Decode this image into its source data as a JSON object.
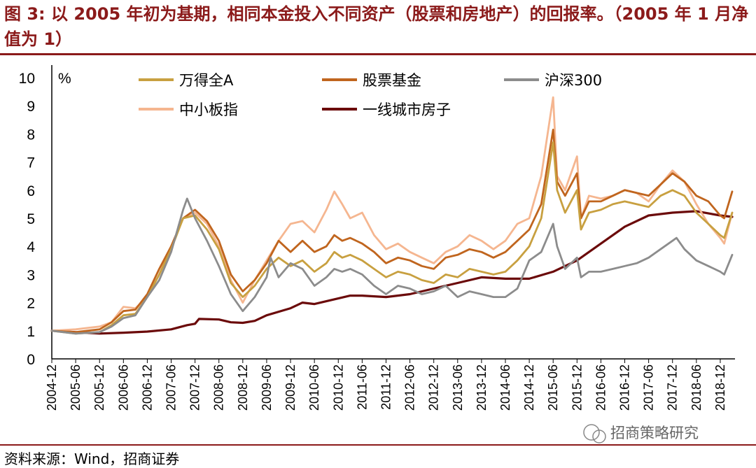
{
  "title": "图 3: 以 2005 年初为基期，相同本金投入不同资产（股票和房地产）的回报率。（2005 年 1 月净值为 1）",
  "source": "资料来源：Wind，招商证券",
  "watermark": "招商策略研究",
  "colors": {
    "accent": "#8b1a1a",
    "wande_a": "#c8a040",
    "stock_fund": "#c0651e",
    "hs300": "#8c8c8c",
    "sme": "#f5b690",
    "tier1_housing": "#6b0a0a"
  },
  "chart_data": {
    "type": "line",
    "title": "",
    "ylabel": "%",
    "ylim": [
      0,
      10
    ],
    "yticks": [
      "0",
      "1",
      "2",
      "3",
      "4",
      "5",
      "6",
      "7",
      "8",
      "9",
      "10"
    ],
    "x_start": "2004-12",
    "x_end": "2019-03",
    "x_ticks": [
      "2004-12",
      "2005-06",
      "2005-12",
      "2006-06",
      "2006-12",
      "2007-06",
      "2007-12",
      "2008-06",
      "2008-12",
      "2009-06",
      "2009-12",
      "2010-06",
      "2010-12",
      "2011-06",
      "2011-12",
      "2012-06",
      "2012-12",
      "2013-06",
      "2013-12",
      "2014-06",
      "2014-12",
      "2015-06",
      "2015-12",
      "2016-06",
      "2016-12",
      "2017-06",
      "2017-12",
      "2018-06",
      "2018-12"
    ],
    "series": [
      {
        "name": "一线城市房子",
        "color_key": "tier1_housing",
        "points": [
          [
            "2004-12",
            1.0
          ],
          [
            "2005-06",
            0.95
          ],
          [
            "2005-12",
            0.9
          ],
          [
            "2006-06",
            0.93
          ],
          [
            "2006-12",
            0.97
          ],
          [
            "2007-06",
            1.05
          ],
          [
            "2007-10",
            1.2
          ],
          [
            "2007-12",
            1.25
          ],
          [
            "2008-01",
            1.42
          ],
          [
            "2008-06",
            1.4
          ],
          [
            "2008-09",
            1.3
          ],
          [
            "2008-12",
            1.28
          ],
          [
            "2009-03",
            1.35
          ],
          [
            "2009-06",
            1.55
          ],
          [
            "2009-12",
            1.8
          ],
          [
            "2010-03",
            2.0
          ],
          [
            "2010-06",
            1.95
          ],
          [
            "2010-12",
            2.15
          ],
          [
            "2011-03",
            2.25
          ],
          [
            "2011-06",
            2.25
          ],
          [
            "2011-12",
            2.2
          ],
          [
            "2012-06",
            2.3
          ],
          [
            "2012-12",
            2.5
          ],
          [
            "2013-06",
            2.7
          ],
          [
            "2013-12",
            2.9
          ],
          [
            "2014-06",
            2.85
          ],
          [
            "2014-12",
            2.85
          ],
          [
            "2015-06",
            3.1
          ],
          [
            "2015-12",
            3.5
          ],
          [
            "2016-06",
            4.1
          ],
          [
            "2016-12",
            4.7
          ],
          [
            "2017-06",
            5.1
          ],
          [
            "2017-12",
            5.2
          ],
          [
            "2018-06",
            5.25
          ],
          [
            "2018-12",
            5.1
          ],
          [
            "2019-03",
            5.05
          ]
        ]
      },
      {
        "name": "中小板指",
        "color_key": "sme",
        "points": [
          [
            "2004-12",
            1.0
          ],
          [
            "2005-06",
            1.05
          ],
          [
            "2005-12",
            1.15
          ],
          [
            "2006-03",
            1.3
          ],
          [
            "2006-06",
            1.85
          ],
          [
            "2006-09",
            1.8
          ],
          [
            "2006-12",
            2.2
          ],
          [
            "2007-03",
            3.0
          ],
          [
            "2007-06",
            4.0
          ],
          [
            "2007-09",
            5.0
          ],
          [
            "2007-12",
            5.2
          ],
          [
            "2008-03",
            4.8
          ],
          [
            "2008-06",
            4.0
          ],
          [
            "2008-09",
            2.8
          ],
          [
            "2008-12",
            2.0
          ],
          [
            "2009-03",
            2.8
          ],
          [
            "2009-06",
            3.5
          ],
          [
            "2009-09",
            4.2
          ],
          [
            "2009-12",
            4.8
          ],
          [
            "2010-03",
            4.9
          ],
          [
            "2010-06",
            4.5
          ],
          [
            "2010-09",
            5.3
          ],
          [
            "2010-11",
            5.95
          ],
          [
            "2011-01",
            5.5
          ],
          [
            "2011-03",
            5.0
          ],
          [
            "2011-06",
            5.2
          ],
          [
            "2011-09",
            4.4
          ],
          [
            "2011-12",
            3.9
          ],
          [
            "2012-03",
            4.1
          ],
          [
            "2012-06",
            3.8
          ],
          [
            "2012-09",
            3.6
          ],
          [
            "2012-12",
            3.4
          ],
          [
            "2013-03",
            3.8
          ],
          [
            "2013-06",
            4.0
          ],
          [
            "2013-09",
            4.4
          ],
          [
            "2013-12",
            4.2
          ],
          [
            "2014-03",
            3.9
          ],
          [
            "2014-06",
            4.2
          ],
          [
            "2014-09",
            4.8
          ],
          [
            "2014-12",
            5.0
          ],
          [
            "2015-03",
            6.5
          ],
          [
            "2015-06",
            9.3
          ],
          [
            "2015-07",
            6.5
          ],
          [
            "2015-09",
            6.0
          ],
          [
            "2015-12",
            7.2
          ],
          [
            "2016-01",
            5.0
          ],
          [
            "2016-03",
            5.8
          ],
          [
            "2016-06",
            5.7
          ],
          [
            "2016-09",
            5.8
          ],
          [
            "2016-12",
            6.0
          ],
          [
            "2017-03",
            5.9
          ],
          [
            "2017-06",
            5.6
          ],
          [
            "2017-09",
            6.2
          ],
          [
            "2017-12",
            6.7
          ],
          [
            "2018-03",
            6.3
          ],
          [
            "2018-06",
            5.5
          ],
          [
            "2018-09",
            4.8
          ],
          [
            "2018-12",
            4.3
          ],
          [
            "2019-01",
            4.1
          ],
          [
            "2019-03",
            5.2
          ]
        ]
      },
      {
        "name": "股票基金",
        "color_key": "stock_fund",
        "points": [
          [
            "2004-12",
            1.0
          ],
          [
            "2005-06",
            0.95
          ],
          [
            "2005-12",
            1.05
          ],
          [
            "2006-03",
            1.3
          ],
          [
            "2006-06",
            1.7
          ],
          [
            "2006-09",
            1.75
          ],
          [
            "2006-12",
            2.3
          ],
          [
            "2007-03",
            3.2
          ],
          [
            "2007-06",
            4.0
          ],
          [
            "2007-09",
            5.0
          ],
          [
            "2007-12",
            5.3
          ],
          [
            "2008-03",
            4.9
          ],
          [
            "2008-06",
            4.2
          ],
          [
            "2008-09",
            3.0
          ],
          [
            "2008-12",
            2.4
          ],
          [
            "2009-03",
            2.8
          ],
          [
            "2009-06",
            3.4
          ],
          [
            "2009-09",
            4.2
          ],
          [
            "2009-12",
            3.8
          ],
          [
            "2010-03",
            4.2
          ],
          [
            "2010-06",
            3.8
          ],
          [
            "2010-09",
            4.0
          ],
          [
            "2010-11",
            4.4
          ],
          [
            "2011-01",
            4.2
          ],
          [
            "2011-03",
            4.3
          ],
          [
            "2011-06",
            4.1
          ],
          [
            "2011-09",
            3.8
          ],
          [
            "2011-12",
            3.4
          ],
          [
            "2012-03",
            3.6
          ],
          [
            "2012-06",
            3.5
          ],
          [
            "2012-09",
            3.3
          ],
          [
            "2012-12",
            3.2
          ],
          [
            "2013-03",
            3.6
          ],
          [
            "2013-06",
            3.7
          ],
          [
            "2013-09",
            3.9
          ],
          [
            "2013-12",
            3.8
          ],
          [
            "2014-03",
            3.6
          ],
          [
            "2014-06",
            3.8
          ],
          [
            "2014-09",
            4.2
          ],
          [
            "2014-12",
            4.6
          ],
          [
            "2015-03",
            5.5
          ],
          [
            "2015-06",
            8.15
          ],
          [
            "2015-07",
            6.3
          ],
          [
            "2015-09",
            5.8
          ],
          [
            "2015-12",
            6.6
          ],
          [
            "2016-01",
            5.0
          ],
          [
            "2016-03",
            5.6
          ],
          [
            "2016-06",
            5.6
          ],
          [
            "2016-09",
            5.8
          ],
          [
            "2016-12",
            6.0
          ],
          [
            "2017-03",
            5.9
          ],
          [
            "2017-06",
            5.8
          ],
          [
            "2017-09",
            6.2
          ],
          [
            "2017-12",
            6.6
          ],
          [
            "2018-03",
            6.3
          ],
          [
            "2018-06",
            5.8
          ],
          [
            "2018-09",
            5.6
          ],
          [
            "2018-12",
            5.1
          ],
          [
            "2019-01",
            5.0
          ],
          [
            "2019-03",
            5.95
          ]
        ]
      },
      {
        "name": "万得全A",
        "color_key": "wande_a",
        "points": [
          [
            "2004-12",
            1.0
          ],
          [
            "2005-06",
            0.9
          ],
          [
            "2005-12",
            0.95
          ],
          [
            "2006-03",
            1.2
          ],
          [
            "2006-06",
            1.55
          ],
          [
            "2006-09",
            1.6
          ],
          [
            "2006-12",
            2.2
          ],
          [
            "2007-03",
            3.0
          ],
          [
            "2007-06",
            3.9
          ],
          [
            "2007-09",
            5.0
          ],
          [
            "2007-12",
            5.1
          ],
          [
            "2008-03",
            4.6
          ],
          [
            "2008-06",
            3.9
          ],
          [
            "2008-09",
            2.7
          ],
          [
            "2008-12",
            2.2
          ],
          [
            "2009-03",
            2.6
          ],
          [
            "2009-06",
            3.2
          ],
          [
            "2009-09",
            3.6
          ],
          [
            "2009-12",
            3.3
          ],
          [
            "2010-03",
            3.5
          ],
          [
            "2010-06",
            3.1
          ],
          [
            "2010-09",
            3.4
          ],
          [
            "2010-11",
            3.8
          ],
          [
            "2011-01",
            3.6
          ],
          [
            "2011-03",
            3.7
          ],
          [
            "2011-06",
            3.5
          ],
          [
            "2011-09",
            3.2
          ],
          [
            "2011-12",
            2.9
          ],
          [
            "2012-03",
            3.1
          ],
          [
            "2012-06",
            3.0
          ],
          [
            "2012-09",
            2.8
          ],
          [
            "2012-12",
            2.7
          ],
          [
            "2013-03",
            3.0
          ],
          [
            "2013-06",
            2.9
          ],
          [
            "2013-09",
            3.2
          ],
          [
            "2013-12",
            3.1
          ],
          [
            "2014-03",
            3.0
          ],
          [
            "2014-06",
            3.1
          ],
          [
            "2014-09",
            3.5
          ],
          [
            "2014-12",
            4.0
          ],
          [
            "2015-03",
            5.0
          ],
          [
            "2015-06",
            7.7
          ],
          [
            "2015-07",
            6.0
          ],
          [
            "2015-09",
            5.2
          ],
          [
            "2015-12",
            6.0
          ],
          [
            "2016-01",
            4.6
          ],
          [
            "2016-03",
            5.2
          ],
          [
            "2016-06",
            5.3
          ],
          [
            "2016-09",
            5.5
          ],
          [
            "2016-12",
            5.6
          ],
          [
            "2017-03",
            5.5
          ],
          [
            "2017-06",
            5.4
          ],
          [
            "2017-09",
            5.8
          ],
          [
            "2017-12",
            6.0
          ],
          [
            "2018-03",
            5.8
          ],
          [
            "2018-06",
            5.2
          ],
          [
            "2018-09",
            4.8
          ],
          [
            "2018-12",
            4.4
          ],
          [
            "2019-01",
            4.3
          ],
          [
            "2019-03",
            5.2
          ]
        ]
      },
      {
        "name": "沪深300",
        "color_key": "hs300",
        "points": [
          [
            "2004-12",
            1.0
          ],
          [
            "2005-06",
            0.9
          ],
          [
            "2005-12",
            0.95
          ],
          [
            "2006-03",
            1.15
          ],
          [
            "2006-06",
            1.45
          ],
          [
            "2006-09",
            1.55
          ],
          [
            "2006-12",
            2.2
          ],
          [
            "2007-03",
            2.8
          ],
          [
            "2007-06",
            3.8
          ],
          [
            "2007-09",
            5.3
          ],
          [
            "2007-10",
            5.7
          ],
          [
            "2007-12",
            5.0
          ],
          [
            "2008-03",
            4.2
          ],
          [
            "2008-06",
            3.3
          ],
          [
            "2008-09",
            2.3
          ],
          [
            "2008-12",
            1.7
          ],
          [
            "2009-03",
            2.2
          ],
          [
            "2009-06",
            2.9
          ],
          [
            "2009-07",
            3.6
          ],
          [
            "2009-09",
            2.9
          ],
          [
            "2009-12",
            3.4
          ],
          [
            "2010-03",
            3.2
          ],
          [
            "2010-06",
            2.6
          ],
          [
            "2010-09",
            2.9
          ],
          [
            "2010-11",
            3.2
          ],
          [
            "2011-01",
            3.1
          ],
          [
            "2011-03",
            3.2
          ],
          [
            "2011-06",
            3.0
          ],
          [
            "2011-09",
            2.6
          ],
          [
            "2011-12",
            2.3
          ],
          [
            "2012-03",
            2.6
          ],
          [
            "2012-06",
            2.5
          ],
          [
            "2012-09",
            2.3
          ],
          [
            "2012-12",
            2.4
          ],
          [
            "2013-03",
            2.6
          ],
          [
            "2013-06",
            2.2
          ],
          [
            "2013-09",
            2.4
          ],
          [
            "2013-12",
            2.3
          ],
          [
            "2014-03",
            2.2
          ],
          [
            "2014-06",
            2.2
          ],
          [
            "2014-09",
            2.5
          ],
          [
            "2014-12",
            3.5
          ],
          [
            "2015-03",
            3.8
          ],
          [
            "2015-06",
            4.8
          ],
          [
            "2015-07",
            4.0
          ],
          [
            "2015-09",
            3.2
          ],
          [
            "2015-12",
            3.6
          ],
          [
            "2016-01",
            2.9
          ],
          [
            "2016-03",
            3.1
          ],
          [
            "2016-06",
            3.1
          ],
          [
            "2016-09",
            3.2
          ],
          [
            "2016-12",
            3.3
          ],
          [
            "2017-03",
            3.4
          ],
          [
            "2017-06",
            3.6
          ],
          [
            "2017-09",
            3.9
          ],
          [
            "2017-12",
            4.2
          ],
          [
            "2018-01",
            4.3
          ],
          [
            "2018-03",
            3.9
          ],
          [
            "2018-06",
            3.5
          ],
          [
            "2018-09",
            3.3
          ],
          [
            "2018-12",
            3.1
          ],
          [
            "2019-01",
            3.0
          ],
          [
            "2019-03",
            3.7
          ]
        ]
      }
    ],
    "legend": [
      {
        "name": "万得全A",
        "color_key": "wande_a"
      },
      {
        "name": "股票基金",
        "color_key": "stock_fund"
      },
      {
        "name": "沪深300",
        "color_key": "hs300"
      },
      {
        "name": "中小板指",
        "color_key": "sme"
      },
      {
        "name": "一线城市房子",
        "color_key": "tier1_housing"
      }
    ]
  }
}
